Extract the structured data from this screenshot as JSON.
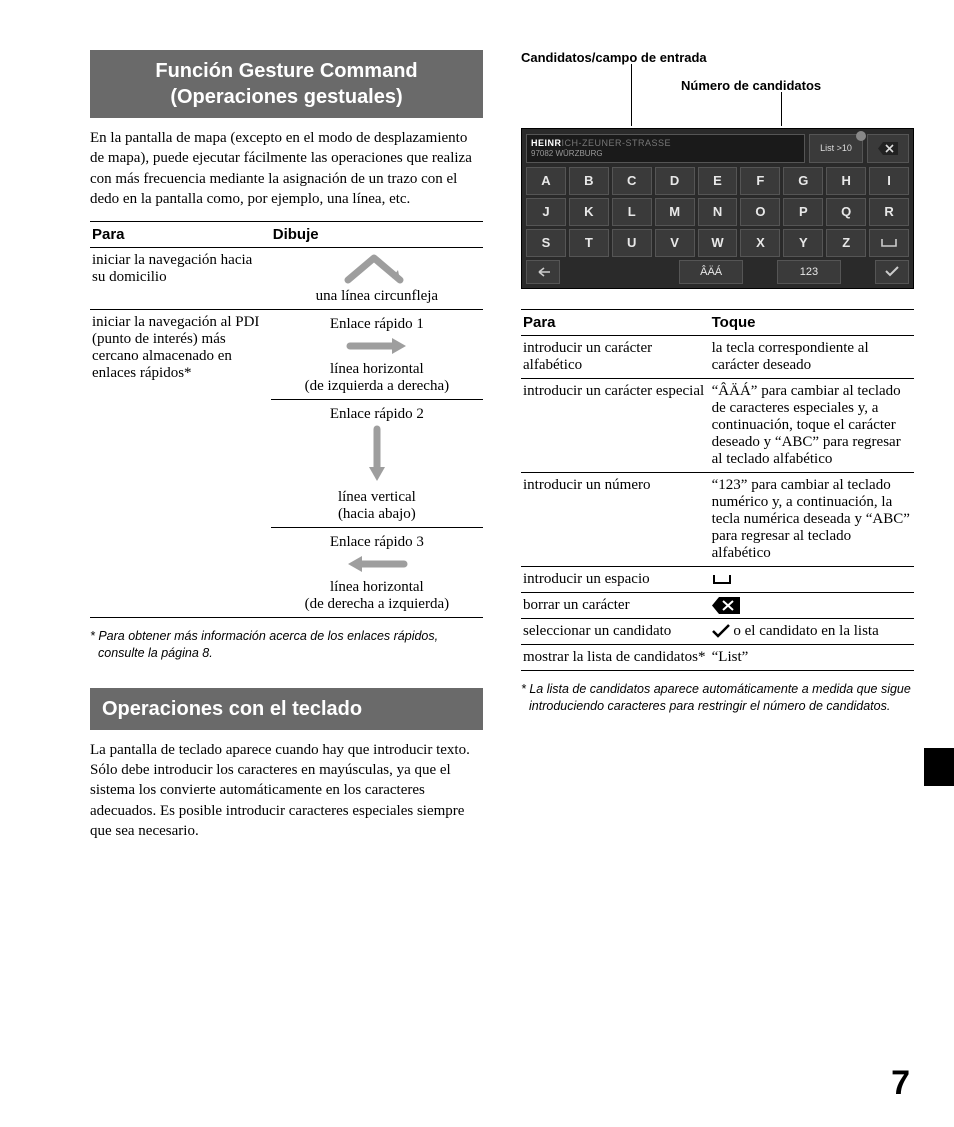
{
  "page_number": "7",
  "left": {
    "header1": "Función Gesture Command (Operaciones gestuales)",
    "intro1": "En la pantalla de mapa (excepto en el modo de desplazamiento de mapa), puede ejecutar fácilmente las operaciones que realiza con más frecuencia mediante la asignación de un trazo con el dedo en la pantalla como, por ejemplo, una línea, etc.",
    "table1": {
      "col1": "Para",
      "col2": "Dibuje",
      "rows": [
        {
          "para": "iniciar la navegación hacia su domicilio",
          "gestures": [
            {
              "caption": "una línea circunfleja",
              "shape": "chevron"
            }
          ]
        },
        {
          "para": "iniciar la navegación al PDI (punto de interés) más cercano almacenado en enlaces rápidos*",
          "gestures": [
            {
              "title": "Enlace rápido 1",
              "caption": "línea horizontal\n(de izquierda a derecha)",
              "shape": "arrow-right"
            },
            {
              "title": "Enlace rápido 2",
              "caption": "línea vertical\n(hacia abajo)",
              "shape": "arrow-down"
            },
            {
              "title": "Enlace rápido 3",
              "caption": "línea horizontal\n(de derecha a izquierda)",
              "shape": "arrow-left"
            }
          ]
        }
      ]
    },
    "footnote1": "* Para obtener más información acerca de los enlaces rápidos, consulte la página 8.",
    "header2": "Operaciones con el teclado",
    "intro2": "La pantalla de teclado aparece cuando hay que introducir texto.\nSólo debe introducir los caracteres en mayúsculas, ya que el sistema los convierte automáticamente en los caracteres adecuados. Es posible introducir caracteres especiales siempre que sea necesario."
  },
  "right": {
    "label_candidates": "Candidatos/campo de entrada",
    "label_num": "Número de candidatos",
    "keyboard": {
      "typed": "HEINR",
      "suggested": "ICH-ZEUNER-STRASSE",
      "subline": "97082 WÜRZBURG",
      "list_label": "List >10",
      "rows": [
        [
          "A",
          "B",
          "C",
          "D",
          "E",
          "F",
          "G",
          "H",
          "I"
        ],
        [
          "J",
          "K",
          "L",
          "M",
          "N",
          "O",
          "P",
          "Q",
          "R"
        ],
        [
          "S",
          "T",
          "U",
          "V",
          "W",
          "X",
          "Y",
          "Z",
          "␣"
        ]
      ],
      "accent_key": "ÂÄÁ",
      "num_key": "123"
    },
    "table2": {
      "col1": "Para",
      "col2": "Toque",
      "rows": [
        {
          "para": "introducir un carácter alfabético",
          "toque": "la tecla correspondiente al carácter deseado"
        },
        {
          "para": "introducir un carácter especial",
          "toque": "“ÂÄÁ” para cambiar al teclado de caracteres especiales y, a continuación, toque el carácter deseado y “ABC” para regresar al teclado alfabético"
        },
        {
          "para": "introducir un número",
          "toque": "“123” para cambiar al teclado numérico y, a continuación, la tecla numérica deseada y “ABC” para regresar al teclado alfabético"
        },
        {
          "para": "introducir un espacio",
          "toque_icon": "space"
        },
        {
          "para": "borrar un carácter",
          "toque_icon": "backspace"
        },
        {
          "para": "seleccionar un candidato",
          "toque_icon": "check",
          "toque_after": " o el candidato en la lista"
        },
        {
          "para": "mostrar la lista de candidatos*",
          "toque": "“List”"
        }
      ]
    },
    "footnote2": "* La lista de candidatos aparece automáticamente a medida que sigue introduciendo caracteres para restringir el número de candidatos."
  },
  "colors": {
    "header_bg": "#6a6a6a",
    "gesture_stroke": "#9e9e9e",
    "kb_bg": "#2a2a2a",
    "key_bg": "#3a3a3a"
  }
}
